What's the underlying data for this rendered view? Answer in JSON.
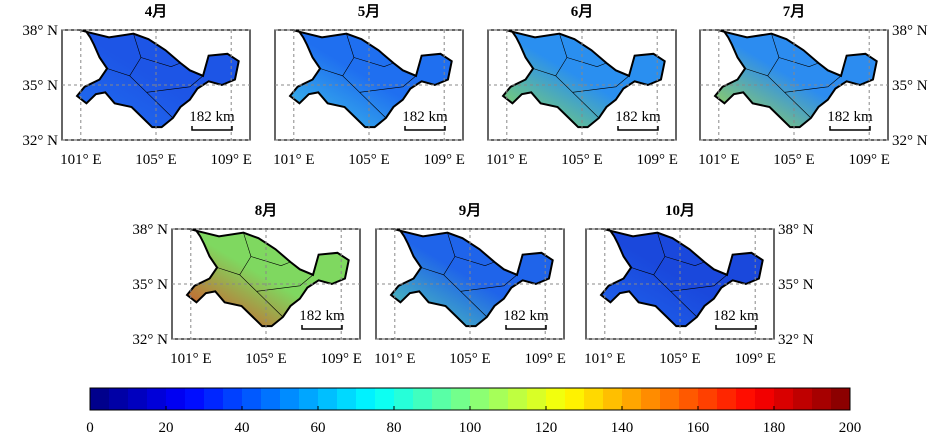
{
  "map": {
    "xlim": [
      100,
      110
    ],
    "ylim": [
      32,
      38
    ],
    "xticks": [
      {
        "value": 101,
        "label": "101° E"
      },
      {
        "value": 105,
        "label": "105° E"
      },
      {
        "value": 109,
        "label": "109° E"
      }
    ],
    "yticks": [
      {
        "value": 32,
        "label": "32° N"
      },
      {
        "value": 35,
        "label": "35° N"
      },
      {
        "value": 38,
        "label": "38° N"
      }
    ],
    "scale_bar": "182 km",
    "panels": [
      {
        "title": "4月",
        "fill": "#1d55e6",
        "fill2": "#1f6ef0"
      },
      {
        "title": "5月",
        "fill": "#1f6ff0",
        "fill2": "#3fc4e8"
      },
      {
        "title": "6月",
        "fill": "#2a8ff0",
        "fill2": "#8fe050"
      },
      {
        "title": "7月",
        "fill": "#2c8cf0",
        "fill2": "#a8e040"
      },
      {
        "title": "8月",
        "fill": "#7fd860",
        "fill2": "#e04020"
      },
      {
        "title": "9月",
        "fill": "#1f64ea",
        "fill2": "#55d0b0"
      },
      {
        "title": "10月",
        "fill": "#1a48dc",
        "fill2": "#1f66ee"
      }
    ],
    "colorbar": {
      "lim": [
        0,
        200
      ],
      "ticks": [
        0,
        20,
        40,
        60,
        80,
        100,
        120,
        140,
        160,
        180,
        200
      ]
    }
  }
}
